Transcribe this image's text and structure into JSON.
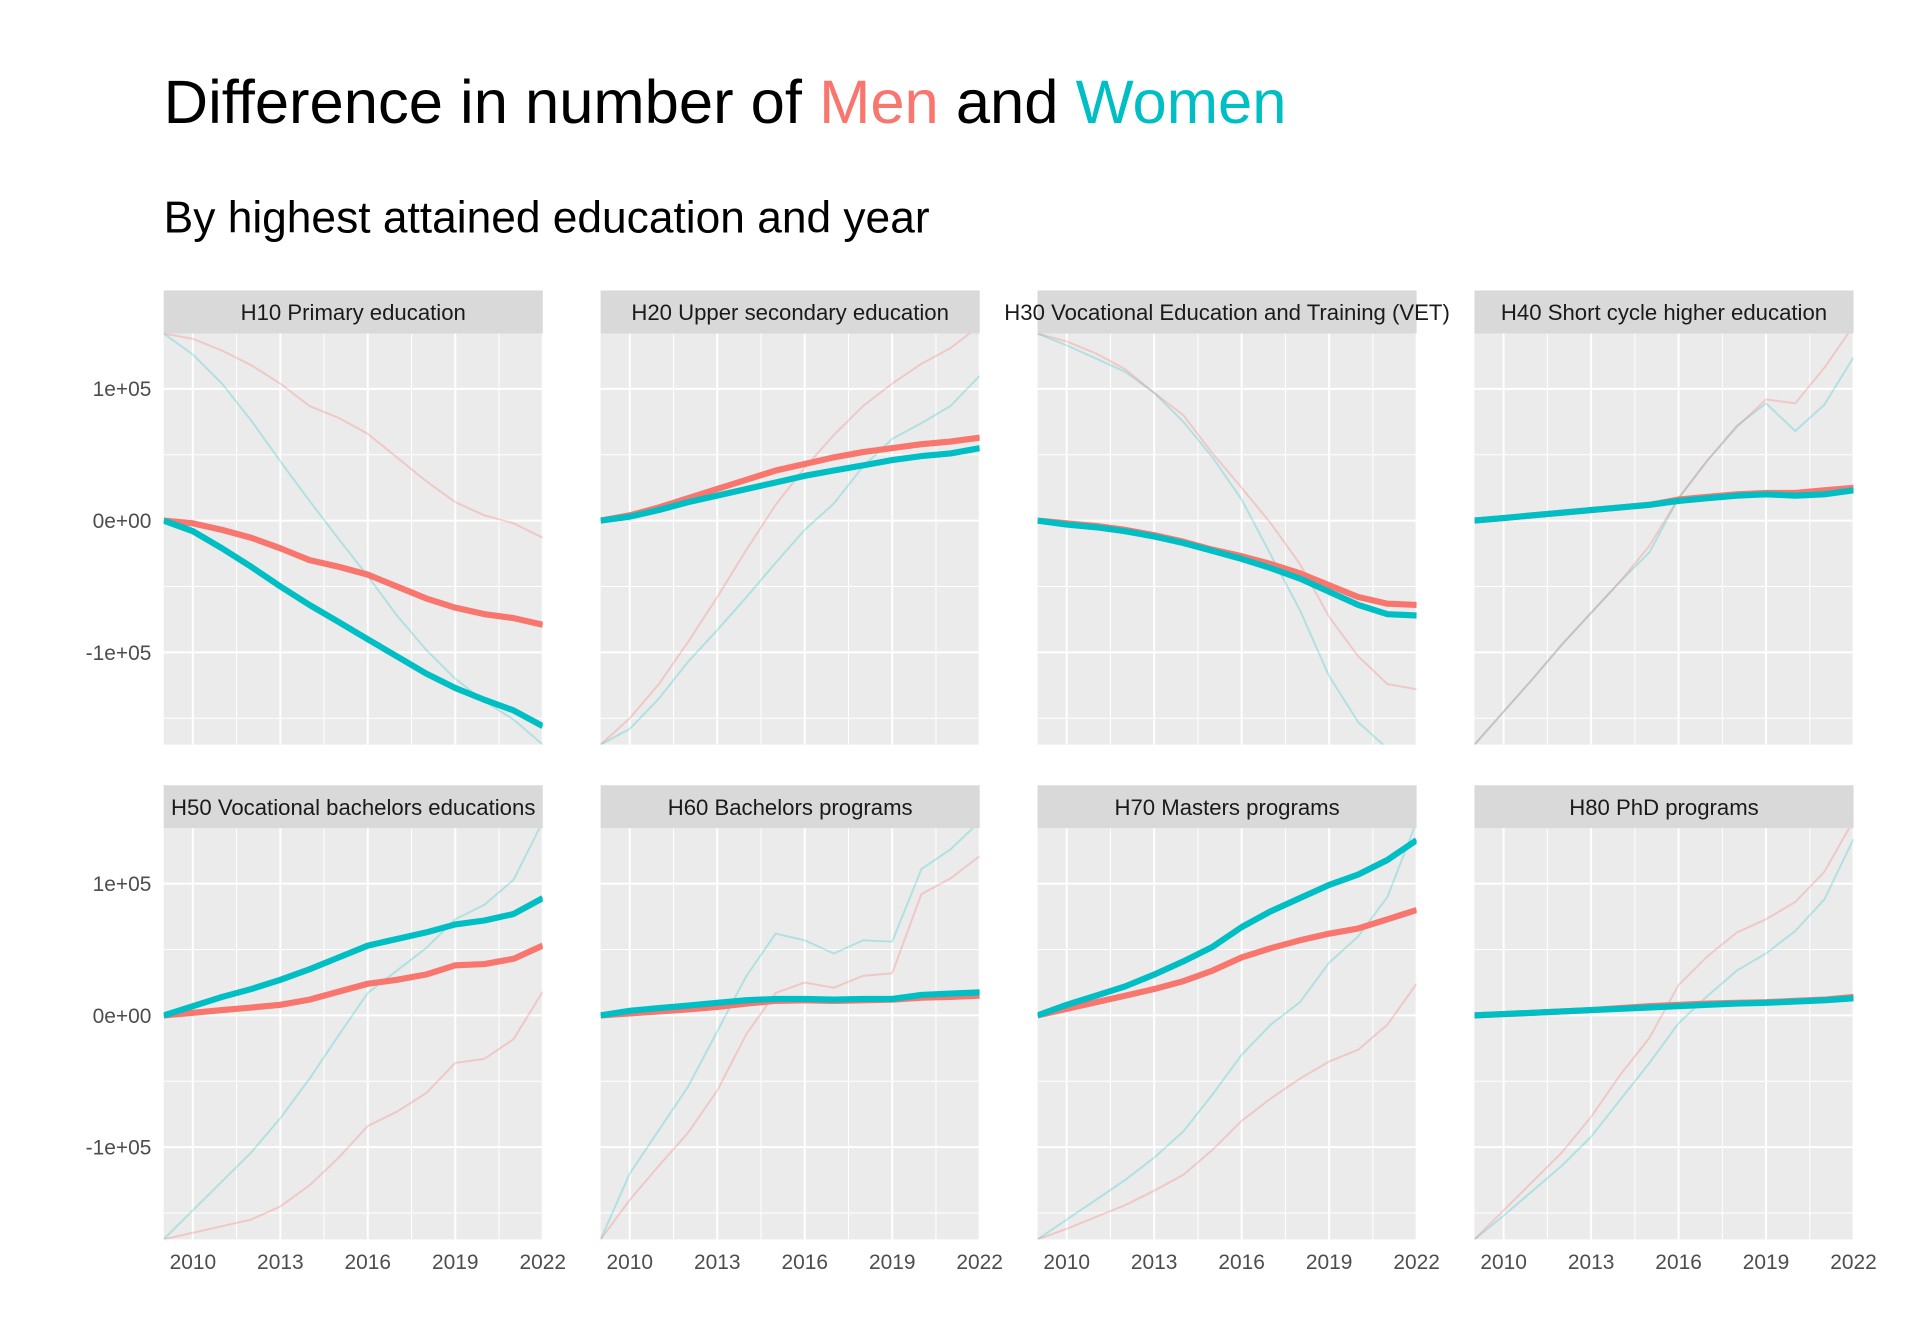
{
  "chart_data": {
    "type": "line",
    "title": {
      "parts": [
        {
          "text": "Difference in number of ",
          "role": "plain"
        },
        {
          "text": "Men",
          "role": "men"
        },
        {
          "text": " and ",
          "role": "plain"
        },
        {
          "text": "Women",
          "role": "women"
        }
      ]
    },
    "subtitle": "By highest attained education and year",
    "xlabel": "",
    "ylabel": "",
    "xlim": [
      2009,
      2022
    ],
    "ylim": [
      -170000,
      142000
    ],
    "x_ticks": [
      2010,
      2013,
      2016,
      2019,
      2022
    ],
    "x_tick_labels": [
      "2010",
      "2013",
      "2016",
      "2019",
      "2022"
    ],
    "y_ticks": [
      -100000,
      0,
      100000
    ],
    "y_tick_labels": [
      "-1e+05",
      "0e+00",
      "1e+05"
    ],
    "colors": {
      "men": "#F8766D",
      "women": "#00BFC4"
    },
    "grid": true,
    "legend": "none (colored title words)",
    "years": [
      2009,
      2010,
      2011,
      2012,
      2013,
      2014,
      2015,
      2016,
      2017,
      2018,
      2019,
      2020,
      2021,
      2022
    ],
    "panels": [
      {
        "label": "H10 Primary education",
        "men": [
          0,
          -2000,
          -7000,
          -13000,
          -21000,
          -30000,
          -35000,
          -41000,
          -50000,
          -59000,
          -66000,
          -71000,
          -74000,
          -79000
        ],
        "women": [
          0,
          -8000,
          -21000,
          -35000,
          -50000,
          -64000,
          -77000,
          -90000,
          -103000,
          -116000,
          -127000,
          -136000,
          -144000,
          -156000
        ],
        "men_scaled": [
          142000,
          138000,
          129000,
          118000,
          104000,
          87000,
          78000,
          66000,
          48000,
          30000,
          14000,
          4000,
          -2000,
          -13000
        ],
        "women_scaled": [
          142000,
          126000,
          104000,
          76000,
          45000,
          15000,
          -14000,
          -42000,
          -72000,
          -98000,
          -120000,
          -137000,
          -151000,
          -170000
        ]
      },
      {
        "label": "H20 Upper secondary education",
        "men": [
          0,
          4000,
          10000,
          17000,
          24000,
          31000,
          38000,
          43000,
          48000,
          52000,
          55000,
          58000,
          60000,
          63000
        ],
        "women": [
          0,
          3000,
          8000,
          14000,
          19000,
          24000,
          29000,
          34000,
          38000,
          42000,
          46000,
          49000,
          51000,
          55000
        ],
        "men_scaled": [
          -170000,
          -150000,
          -124000,
          -92000,
          -58000,
          -22000,
          12000,
          40000,
          65000,
          87000,
          104000,
          119000,
          131000,
          148000
        ],
        "women_scaled": [
          -170000,
          -158000,
          -135000,
          -107000,
          -83000,
          -58000,
          -32000,
          -7000,
          13000,
          41000,
          62000,
          74000,
          87000,
          110000
        ]
      },
      {
        "label": "H30 Vocational Education and Training (VET)",
        "men": [
          0,
          -2000,
          -4000,
          -7000,
          -11000,
          -16000,
          -22000,
          -27000,
          -33000,
          -40000,
          -49000,
          -58000,
          -63000,
          -64000
        ],
        "women": [
          0,
          -3000,
          -5000,
          -8000,
          -12000,
          -17000,
          -23000,
          -29000,
          -36000,
          -44000,
          -54000,
          -64000,
          -71000,
          -72000
        ],
        "men_scaled": [
          142000,
          136000,
          127000,
          115000,
          97000,
          80000,
          51000,
          25000,
          -2000,
          -33000,
          -73000,
          -103000,
          -124000,
          -128000
        ],
        "women_scaled": [
          142000,
          133000,
          123000,
          113000,
          97000,
          75000,
          48000,
          16000,
          -26000,
          -68000,
          -118000,
          -153000,
          -173000,
          -175000
        ]
      },
      {
        "label": "H40 Short cycle higher education",
        "men": [
          0,
          2000,
          4000,
          6000,
          8000,
          10000,
          12000,
          16000,
          18000,
          20000,
          21000,
          21000,
          23000,
          25000
        ],
        "women": [
          0,
          2000,
          4000,
          6000,
          8000,
          10000,
          12000,
          15000,
          17000,
          19000,
          20000,
          19000,
          20000,
          23000
        ],
        "men_scaled": [
          -170000,
          -145000,
          -120000,
          -94000,
          -70000,
          -46000,
          -19000,
          17000,
          46000,
          71000,
          92000,
          89000,
          116000,
          148000
        ],
        "women_scaled": [
          -170000,
          -145000,
          -120000,
          -94000,
          -70000,
          -46000,
          -24000,
          17000,
          46000,
          72000,
          89000,
          68000,
          88000,
          124000
        ]
      },
      {
        "label": "H50 Vocational bachelors educations",
        "men": [
          0,
          2000,
          4000,
          6000,
          8000,
          12000,
          18000,
          24000,
          27000,
          31000,
          38000,
          39000,
          43000,
          53000
        ],
        "women": [
          0,
          7000,
          14000,
          20000,
          27000,
          35000,
          44000,
          53000,
          58000,
          63000,
          69000,
          72000,
          77000,
          89000
        ],
        "men_scaled": [
          -170000,
          -165000,
          -160000,
          -155000,
          -145000,
          -129000,
          -108000,
          -84000,
          -73000,
          -59000,
          -36000,
          -33000,
          -18000,
          18000
        ],
        "women_scaled": [
          -170000,
          -148000,
          -126000,
          -104000,
          -78000,
          -48000,
          -15000,
          17000,
          34000,
          51000,
          73000,
          84000,
          103000,
          147000
        ]
      },
      {
        "label": "H60 Bachelors programs",
        "men": [
          0,
          1500,
          3000,
          4500,
          6500,
          9000,
          11000,
          11500,
          11000,
          11500,
          12000,
          13500,
          14000,
          15000
        ],
        "women": [
          0,
          3500,
          5500,
          7500,
          9500,
          11500,
          12500,
          12500,
          12000,
          12500,
          12500,
          15500,
          16500,
          17500
        ],
        "men_scaled": [
          -170000,
          -140000,
          -114000,
          -89000,
          -57000,
          -14000,
          17000,
          25000,
          21000,
          30000,
          32000,
          92000,
          104000,
          121000
        ],
        "women_scaled": [
          -170000,
          -120000,
          -87000,
          -54000,
          -12000,
          30000,
          62000,
          57000,
          47000,
          57000,
          56000,
          111000,
          126000,
          147000
        ]
      },
      {
        "label": "H70 Masters programs",
        "men": [
          0,
          5000,
          10000,
          15000,
          20000,
          26000,
          34000,
          44000,
          51000,
          57000,
          62000,
          66000,
          73000,
          80000
        ],
        "women": [
          0,
          8000,
          15000,
          22000,
          31000,
          41000,
          52000,
          67000,
          79000,
          89000,
          99000,
          107000,
          118000,
          133000
        ],
        "men_scaled": [
          -170000,
          -162000,
          -153000,
          -144000,
          -133000,
          -121000,
          -102000,
          -80000,
          -63000,
          -48000,
          -35000,
          -26000,
          -7000,
          24000
        ],
        "women_scaled": [
          -170000,
          -155000,
          -140000,
          -125000,
          -108000,
          -88000,
          -60000,
          -30000,
          -7000,
          10000,
          40000,
          60000,
          90000,
          147000
        ]
      },
      {
        "label": "H80 PhD programs",
        "men": [
          0,
          1000,
          2000,
          3000,
          4000,
          5500,
          7000,
          8000,
          9000,
          9500,
          10000,
          11000,
          12000,
          14000
        ],
        "women": [
          0,
          1000,
          2000,
          3000,
          4000,
          5000,
          6000,
          7000,
          8000,
          9000,
          9500,
          10500,
          11500,
          13000
        ],
        "men_scaled": [
          -170000,
          -148000,
          -126000,
          -104000,
          -77000,
          -45000,
          -17000,
          23000,
          45000,
          63000,
          73000,
          86000,
          109000,
          148000
        ],
        "women_scaled": [
          -170000,
          -152000,
          -133000,
          -114000,
          -92000,
          -64000,
          -36000,
          -6000,
          15000,
          34000,
          47000,
          64000,
          88000,
          134000
        ]
      }
    ]
  }
}
